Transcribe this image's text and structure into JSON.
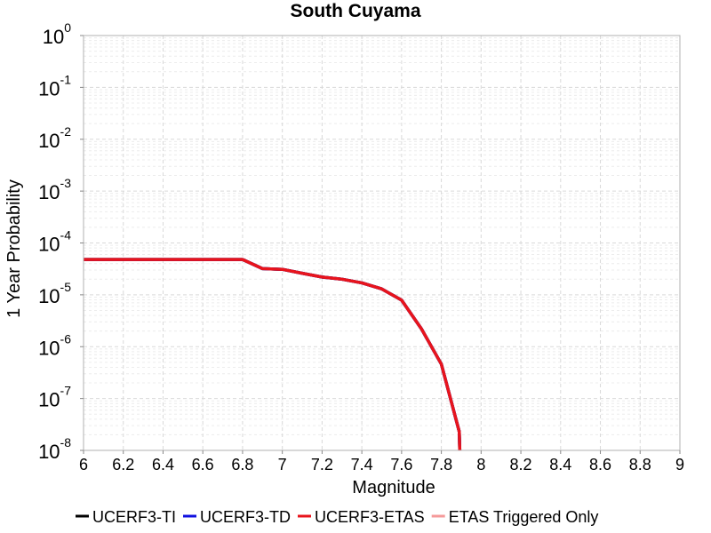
{
  "chart_data": {
    "type": "line",
    "title": "South Cuyama",
    "x_label": "Magnitude",
    "y_label": "1 Year Probability",
    "log_scale_y": true,
    "grid": true,
    "legend_position": "bottom",
    "x": [
      6,
      6.1,
      6.2,
      6.3,
      6.4,
      6.5,
      6.6,
      6.7,
      6.8,
      6.9,
      7,
      7.1,
      7.2,
      7.3,
      7.4,
      7.5,
      7.6,
      7.7,
      7.8,
      7.89,
      7.9
    ],
    "series": [
      {
        "name": "UCERF3-TI",
        "color": "#000000",
        "values": [
          4.8e-05,
          4.8e-05,
          4.8e-05,
          4.8e-05,
          4.8e-05,
          4.8e-05,
          4.8e-05,
          4.8e-05,
          4.8e-05,
          3.2e-05,
          3.1e-05,
          2.6e-05,
          2.2e-05,
          2e-05,
          1.7e-05,
          1.3e-05,
          7.9e-06,
          2.2e-06,
          4.6e-07,
          2.3e-08,
          1e-09
        ]
      },
      {
        "name": "UCERF3-TD",
        "color": "#1010e0",
        "values": [
          4.8e-05,
          4.8e-05,
          4.8e-05,
          4.8e-05,
          4.8e-05,
          4.8e-05,
          4.8e-05,
          4.8e-05,
          4.8e-05,
          3.2e-05,
          3.1e-05,
          2.6e-05,
          2.2e-05,
          2e-05,
          1.7e-05,
          1.3e-05,
          7.9e-06,
          2.2e-06,
          4.6e-07,
          2.3e-08,
          1e-09
        ]
      },
      {
        "name": "UCERF3-ETAS",
        "color": "#e8141c",
        "values": [
          4.8e-05,
          4.8e-05,
          4.8e-05,
          4.8e-05,
          4.8e-05,
          4.8e-05,
          4.8e-05,
          4.8e-05,
          4.8e-05,
          3.2e-05,
          3.1e-05,
          2.6e-05,
          2.2e-05,
          2e-05,
          1.7e-05,
          1.3e-05,
          7.9e-06,
          2.2e-06,
          4.6e-07,
          2.3e-08,
          1e-09
        ]
      },
      {
        "name": "ETAS Triggered Only",
        "color": "#f59a9a",
        "values": [
          null,
          null,
          null,
          null,
          null,
          null,
          null,
          null,
          null,
          null,
          null,
          null,
          null,
          null,
          null,
          null,
          null,
          null,
          null,
          null,
          null
        ]
      }
    ],
    "xlim": [
      6,
      9
    ],
    "xticks": [
      6,
      6.2,
      6.4,
      6.6,
      6.8,
      7,
      7.2,
      7.4,
      7.6,
      7.8,
      8,
      8.2,
      8.4,
      8.6,
      8.8,
      9
    ],
    "ylim": [
      1e-08,
      1
    ],
    "yticks": [
      {
        "value": 1e-08,
        "label": "10",
        "exponent": "-8"
      },
      {
        "value": 1e-07,
        "label": "10",
        "exponent": "-7"
      },
      {
        "value": 1e-06,
        "label": "10",
        "exponent": "-6"
      },
      {
        "value": 1e-05,
        "label": "10",
        "exponent": "-5"
      },
      {
        "value": 0.0001,
        "label": "10",
        "exponent": "-4"
      },
      {
        "value": 0.001,
        "label": "10",
        "exponent": "-3"
      },
      {
        "value": 0.01,
        "label": "10",
        "exponent": "-2"
      },
      {
        "value": 0.1,
        "label": "10",
        "exponent": "-1"
      },
      {
        "value": 1,
        "label": "10",
        "exponent": "0"
      }
    ]
  }
}
